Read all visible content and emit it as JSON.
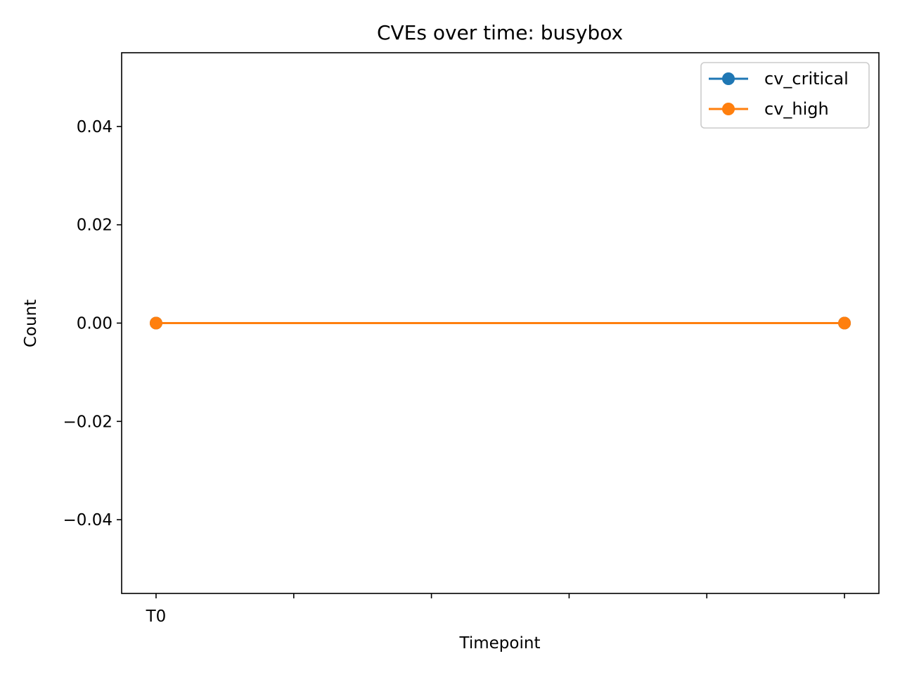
{
  "chart_data": {
    "type": "line",
    "title": "CVEs over time: busybox",
    "xlabel": "Timepoint",
    "ylabel": "Count",
    "x_tick_labels": [
      "T0",
      "",
      "",
      "",
      "",
      ""
    ],
    "x": [
      0,
      5
    ],
    "xlim": [
      -0.25,
      5.25
    ],
    "ylim": [
      -0.055,
      0.055
    ],
    "y_ticks": [
      0.04,
      0.02,
      0.0,
      -0.02,
      -0.04
    ],
    "y_tick_labels": [
      "0.04",
      "0.02",
      "0.00",
      "−0.02",
      "−0.04"
    ],
    "grid": false,
    "legend_position": "top-right",
    "series": [
      {
        "name": "cv_critical",
        "color": "#1f77b4",
        "marker": "circle",
        "values": [
          0,
          0
        ]
      },
      {
        "name": "cv_high",
        "color": "#ff7f0e",
        "marker": "circle",
        "values": [
          0,
          0
        ]
      }
    ]
  }
}
